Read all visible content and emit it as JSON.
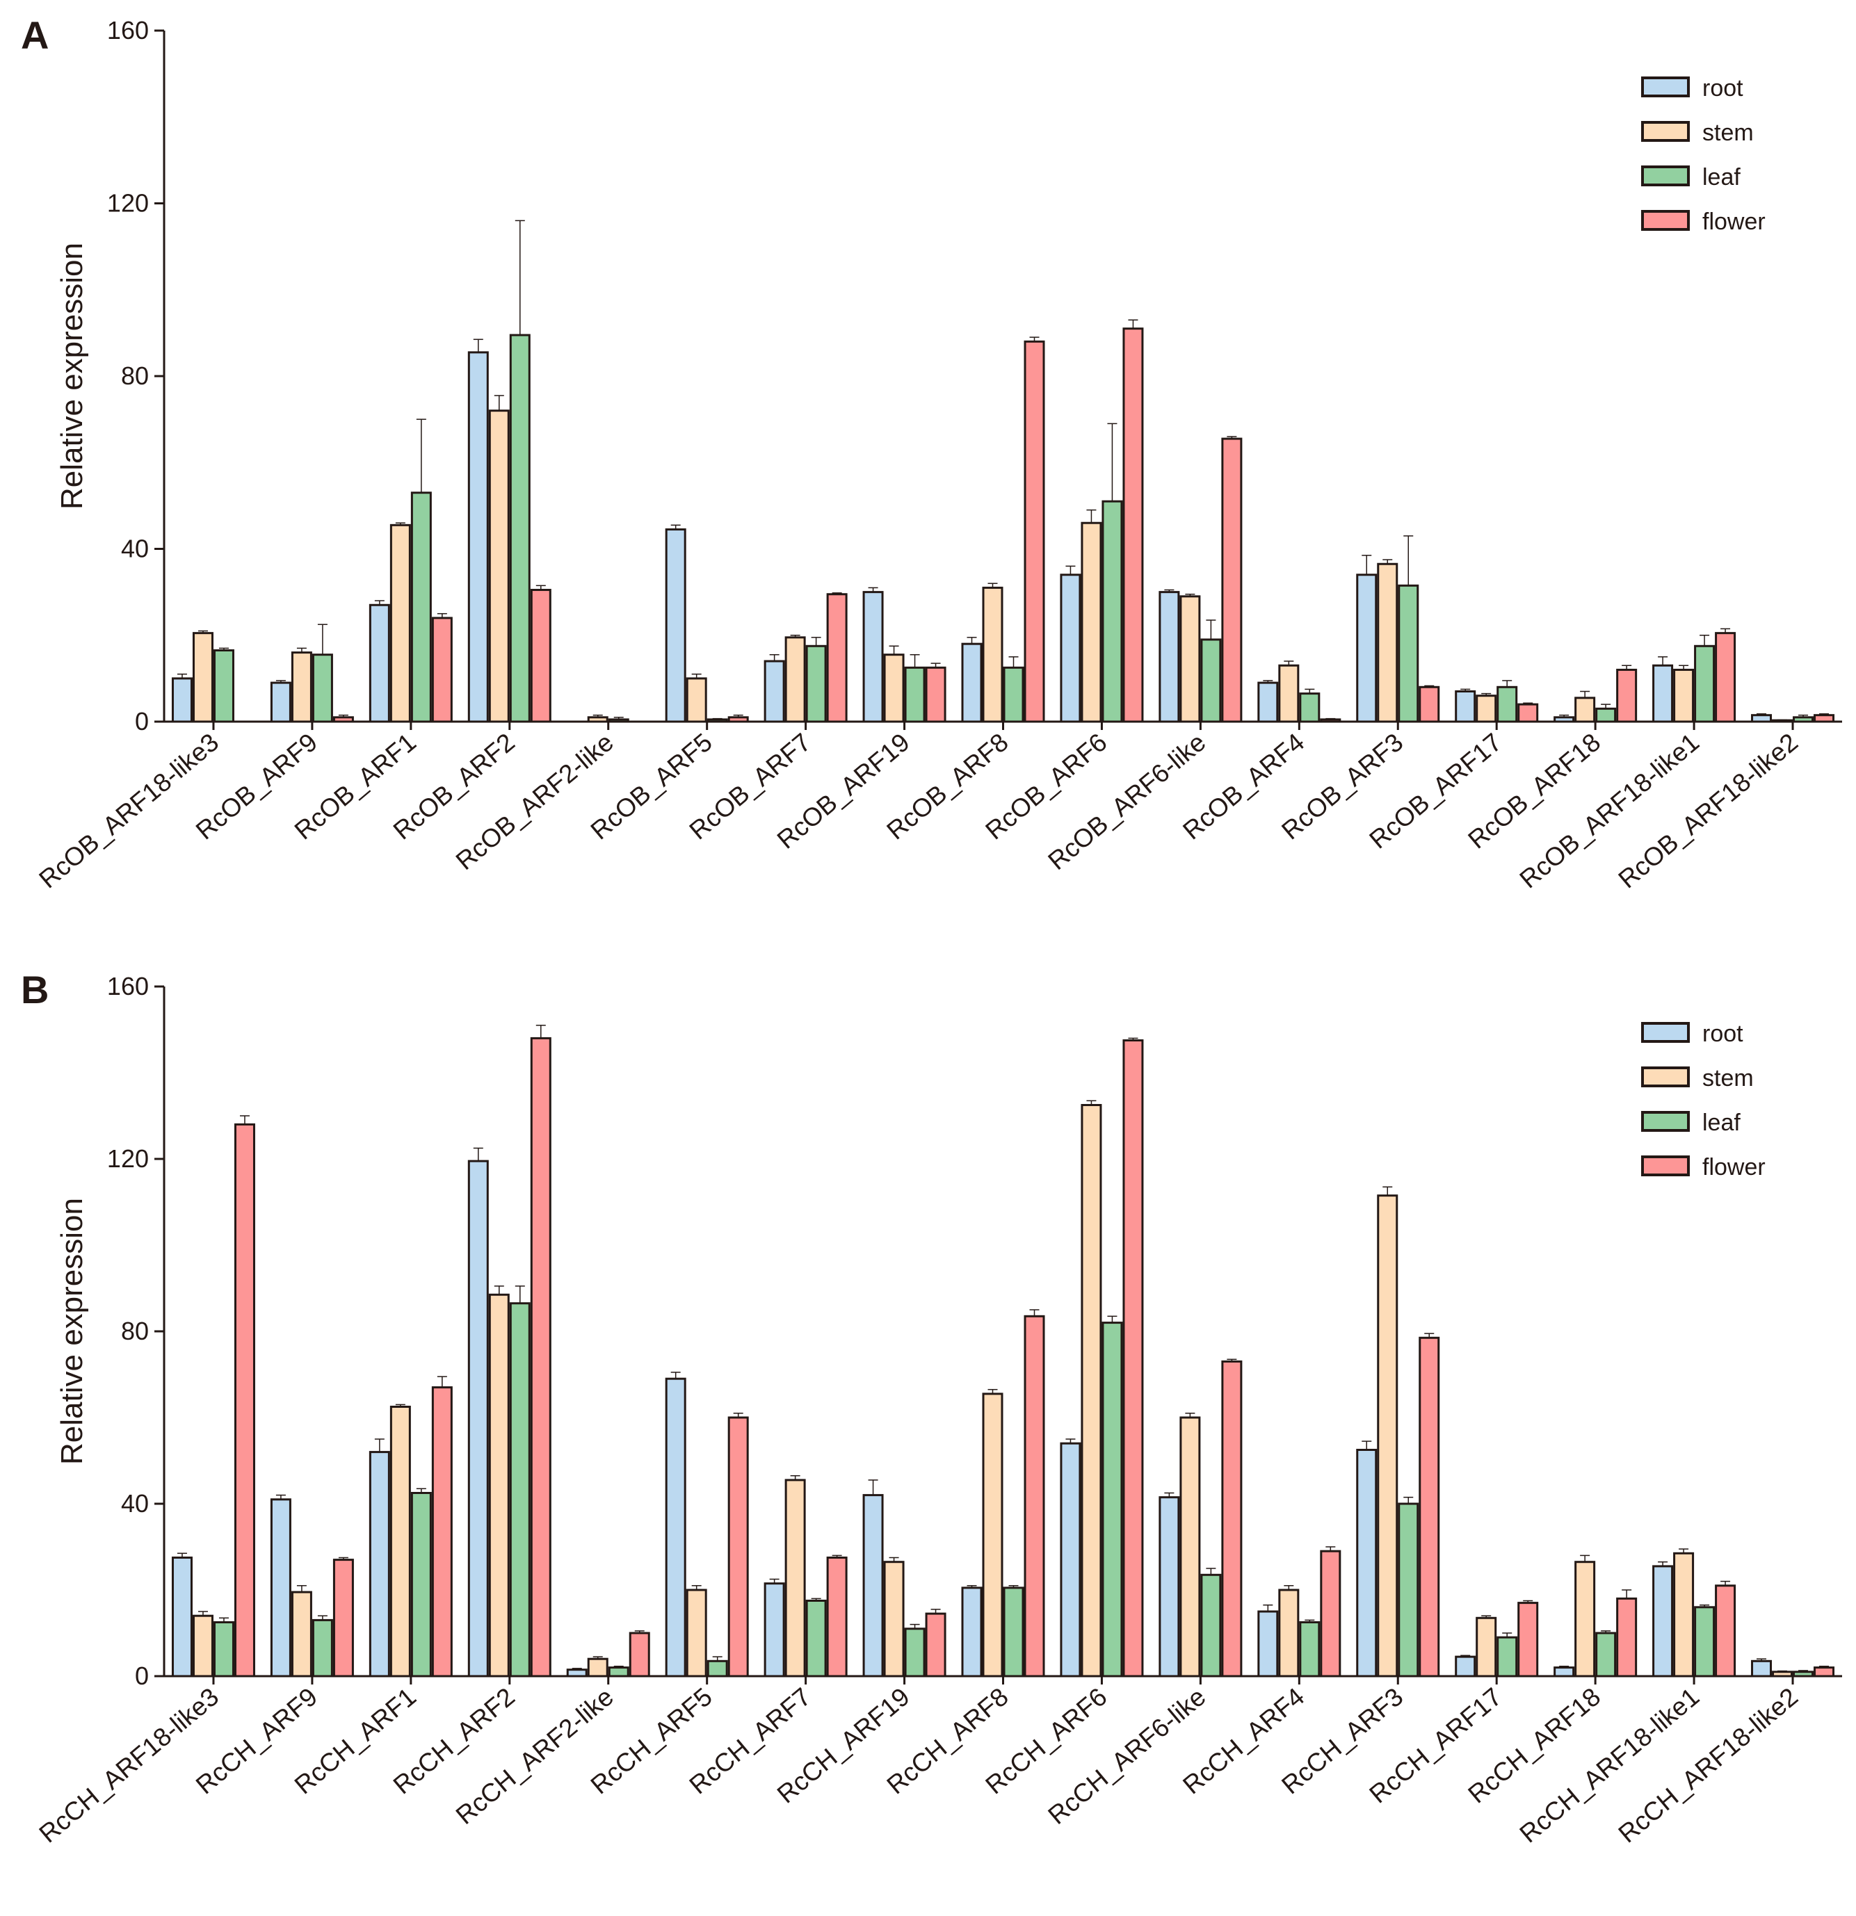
{
  "colors": {
    "root": "#bcd9f0",
    "stem": "#fddcb8",
    "leaf": "#92d0a0",
    "flower": "#fd9696",
    "outline": "#231815"
  },
  "chart_data": [
    {
      "type": "bar",
      "panel_label": "A",
      "ylabel": "Relative expression",
      "xlabel": "",
      "ylim": [
        0,
        160
      ],
      "yticks": [
        "0",
        "40",
        "80",
        "120",
        "160"
      ],
      "legend_position": "top-right",
      "categories": [
        "RcOB_ARF18-like3",
        "RcOB_ARF9",
        "RcOB_ARF1",
        "RcOB_ARF2",
        "RcOB_ARF2-like",
        "RcOB_ARF5",
        "RcOB_ARF7",
        "RcOB_ARF19",
        "RcOB_ARF8",
        "RcOB_ARF6",
        "RcOB_ARF6-like",
        "RcOB_ARF4",
        "RcOB_ARF3",
        "RcOB_ARF17",
        "RcOB_ARF18",
        "RcOB_ARF18-like1",
        "RcOB_ARF18-like2"
      ],
      "series": [
        {
          "name": "root",
          "values": [
            10,
            9,
            27,
            85.5,
            0,
            44.5,
            14,
            30,
            18,
            34,
            30,
            9,
            34,
            7,
            1,
            13,
            1.5
          ],
          "errors": [
            1,
            0.5,
            1,
            3,
            0,
            1,
            1.5,
            1,
            1.5,
            2,
            0.5,
            0.5,
            4.5,
            0.5,
            0.5,
            2,
            0.3
          ]
        },
        {
          "name": "stem",
          "values": [
            20.5,
            16,
            45.5,
            72,
            1,
            10,
            19.5,
            15.5,
            31,
            46,
            29,
            13,
            36.5,
            6,
            5.5,
            12,
            0.3
          ],
          "errors": [
            0.5,
            1,
            0.5,
            3.5,
            0.5,
            1,
            0.5,
            2,
            1,
            3,
            0.5,
            1,
            1,
            0.5,
            1.5,
            1,
            0.1
          ]
        },
        {
          "name": "leaf",
          "values": [
            16.5,
            15.5,
            53,
            89.5,
            0.5,
            0.5,
            17.5,
            12.5,
            12.5,
            51,
            19,
            6.5,
            31.5,
            8,
            3,
            17.5,
            1
          ],
          "errors": [
            0.5,
            7,
            17,
            26.5,
            0.5,
            0.2,
            2,
            3,
            2.5,
            18,
            4.5,
            1,
            11.5,
            1.5,
            1,
            2.5,
            0.5
          ]
        },
        {
          "name": "flower",
          "values": [
            0,
            1,
            24,
            30.5,
            0,
            1,
            29.5,
            12.5,
            88,
            91,
            65.5,
            0.5,
            8,
            4,
            12,
            20.5,
            1.5
          ],
          "errors": [
            0,
            0.5,
            1,
            1,
            0,
            0.5,
            0.3,
            1,
            1,
            2,
            0.5,
            0.2,
            0.3,
            0.3,
            1,
            1,
            0.3
          ]
        }
      ]
    },
    {
      "type": "bar",
      "panel_label": "B",
      "ylabel": "Relative expression",
      "xlabel": "",
      "ylim": [
        0,
        160
      ],
      "yticks": [
        "0",
        "40",
        "80",
        "120",
        "160"
      ],
      "legend_position": "top-right",
      "categories": [
        "RcCH_ARF18-like3",
        "RcCH_ARF9",
        "RcCH_ARF1",
        "RcCH_ARF2",
        "RcCH_ARF2-like",
        "RcCH_ARF5",
        "RcCH_ARF7",
        "RcCH_ARF19",
        "RcCH_ARF8",
        "RcCH_ARF6",
        "RcCH_ARF6-like",
        "RcCH_ARF4",
        "RcCH_ARF3",
        "RcCH_ARF17",
        "RcCH_ARF18",
        "RcCH_ARF18-like1",
        "RcCH_ARF18-like2"
      ],
      "series": [
        {
          "name": "root",
          "values": [
            27.5,
            41,
            52,
            119.5,
            1.5,
            69,
            21.5,
            42,
            20.5,
            54,
            41.5,
            15,
            52.5,
            4.5,
            2,
            25.5,
            3.5
          ],
          "errors": [
            1,
            1,
            3,
            3,
            0.3,
            1.5,
            1,
            3.5,
            0.5,
            1,
            1,
            1.5,
            2,
            0.3,
            0.3,
            1,
            0.5
          ]
        },
        {
          "name": "stem",
          "values": [
            14,
            19.5,
            62.5,
            88.5,
            4,
            20,
            45.5,
            26.5,
            65.5,
            132.5,
            60,
            20,
            111.5,
            13.5,
            26.5,
            28.5,
            1
          ],
          "errors": [
            1,
            1.5,
            0.5,
            2,
            0.5,
            1,
            1,
            1,
            1,
            1,
            1,
            1,
            2,
            0.5,
            1.5,
            1,
            0.2
          ]
        },
        {
          "name": "leaf",
          "values": [
            12.5,
            13,
            42.5,
            86.5,
            2,
            3.5,
            17.5,
            11,
            20.5,
            82,
            23.5,
            12.5,
            40,
            9,
            10,
            16,
            1
          ],
          "errors": [
            1,
            1,
            1,
            4,
            0.3,
            1,
            0.5,
            1,
            0.5,
            1.5,
            1.5,
            0.5,
            1.5,
            1,
            0.5,
            0.5,
            0.3
          ]
        },
        {
          "name": "flower",
          "values": [
            128,
            27,
            67,
            148,
            10,
            60,
            27.5,
            14.5,
            83.5,
            147.5,
            73,
            29,
            78.5,
            17,
            18,
            21,
            2
          ],
          "errors": [
            2,
            0.5,
            2.5,
            3,
            0.5,
            1,
            0.5,
            1,
            1.5,
            0.5,
            0.5,
            1,
            1,
            0.5,
            2,
            1,
            0.3
          ]
        }
      ]
    }
  ]
}
